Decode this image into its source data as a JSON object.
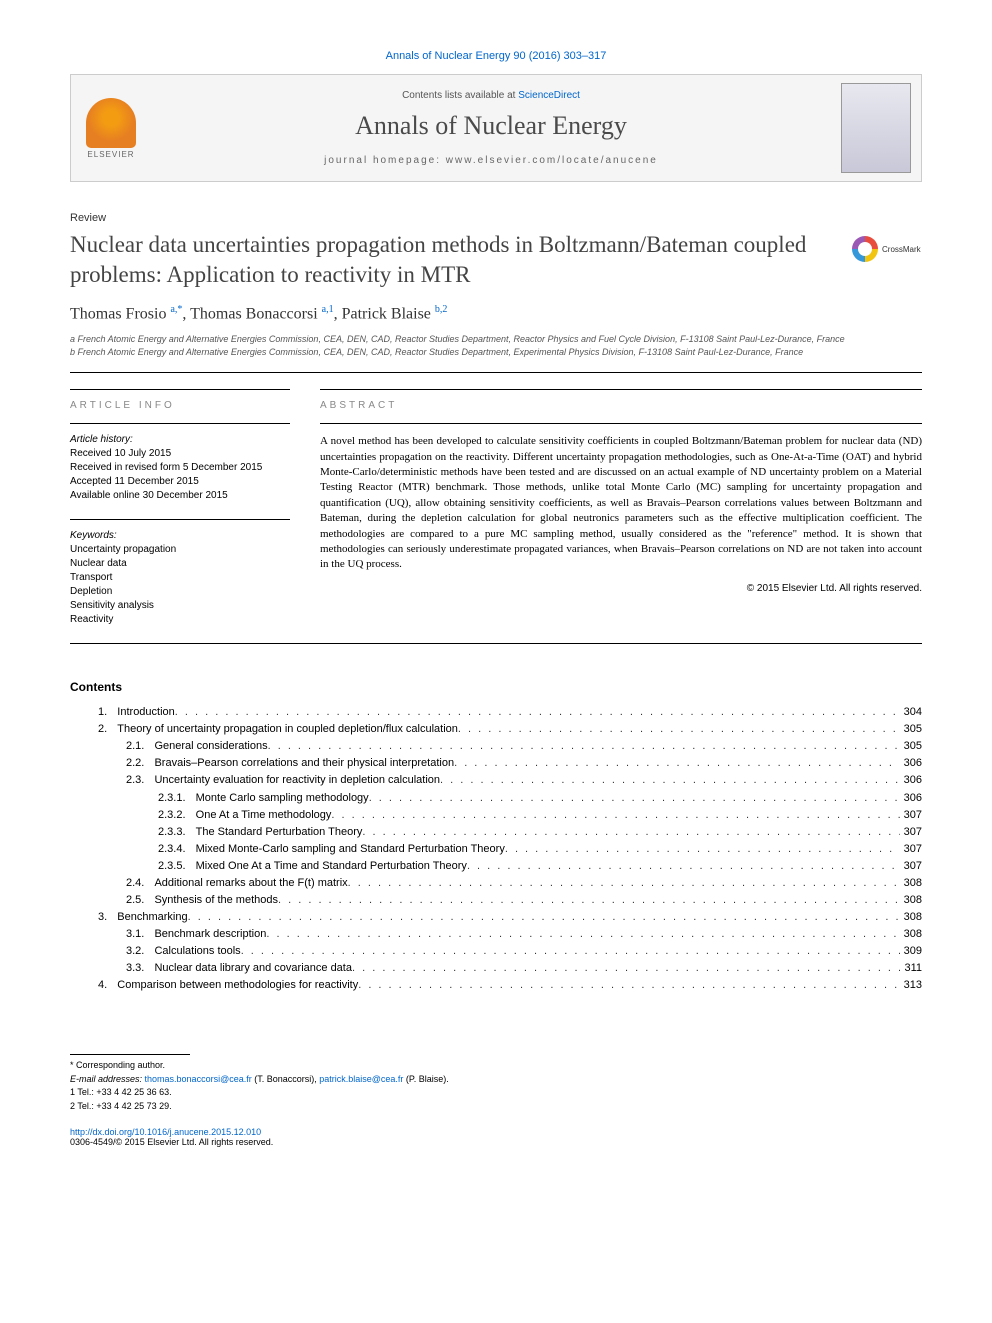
{
  "citation": "Annals of Nuclear Energy 90 (2016) 303–317",
  "header": {
    "publisher": "ELSEVIER",
    "contents_prefix": "Contents lists available at ",
    "contents_link": "ScienceDirect",
    "journal": "Annals of Nuclear Energy",
    "homepage_label": "journal homepage: ",
    "homepage_url": "www.elsevier.com/locate/anucene"
  },
  "article": {
    "type": "Review",
    "title": "Nuclear data uncertainties propagation methods in Boltzmann/Bateman coupled problems: Application to reactivity in MTR",
    "crossmark": "CrossMark",
    "authors_html": "Thomas Frosio <sup>a,*</sup>, Thomas Bonaccorsi <sup>a,1</sup>, Patrick Blaise <sup>b,2</sup>",
    "affiliations": {
      "a": "a French Atomic Energy and Alternative Energies Commission, CEA, DEN, CAD, Reactor Studies Department, Reactor Physics and Fuel Cycle Division, F-13108 Saint Paul-Lez-Durance, France",
      "b": "b French Atomic Energy and Alternative Energies Commission, CEA, DEN, CAD, Reactor Studies Department, Experimental Physics Division, F-13108 Saint Paul-Lez-Durance, France"
    }
  },
  "info": {
    "section_label": "ARTICLE INFO",
    "history_label": "Article history:",
    "history": [
      "Received 10 July 2015",
      "Received in revised form 5 December 2015",
      "Accepted 11 December 2015",
      "Available online 30 December 2015"
    ],
    "keywords_label": "Keywords:",
    "keywords": [
      "Uncertainty propagation",
      "Nuclear data",
      "Transport",
      "Depletion",
      "Sensitivity analysis",
      "Reactivity"
    ]
  },
  "abstract": {
    "section_label": "ABSTRACT",
    "text": "A novel method has been developed to calculate sensitivity coefficients in coupled Boltzmann/Bateman problem for nuclear data (ND) uncertainties propagation on the reactivity. Different uncertainty propagation methodologies, such as One-At-a-Time (OAT) and hybrid Monte-Carlo/deterministic methods have been tested and are discussed on an actual example of ND uncertainty problem on a Material Testing Reactor (MTR) benchmark. Those methods, unlike total Monte Carlo (MC) sampling for uncertainty propagation and quantification (UQ), allow obtaining sensitivity coefficients, as well as Bravais–Pearson correlations values between Boltzmann and Bateman, during the depletion calculation for global neutronics parameters such as the effective multiplication coefficient. The methodologies are compared to a pure MC sampling method, usually considered as the \"reference\" method. It is shown that methodologies can seriously underestimate propagated variances, when Bravais–Pearson correlations on ND are not taken into account in the UQ process.",
    "copyright": "© 2015 Elsevier Ltd. All rights reserved."
  },
  "contents": {
    "heading": "Contents",
    "items": [
      {
        "num": "1.",
        "title": "Introduction",
        "page": "304",
        "indent": 1
      },
      {
        "num": "2.",
        "title": "Theory of uncertainty propagation in coupled depletion/flux calculation",
        "page": "305",
        "indent": 1
      },
      {
        "num": "2.1.",
        "title": "General considerations",
        "page": "305",
        "indent": 2
      },
      {
        "num": "2.2.",
        "title": "Bravais–Pearson correlations and their physical interpretation",
        "page": "306",
        "indent": 2
      },
      {
        "num": "2.3.",
        "title": "Uncertainty evaluation for reactivity in depletion calculation",
        "page": "306",
        "indent": 2
      },
      {
        "num": "2.3.1.",
        "title": "Monte Carlo sampling methodology",
        "page": "306",
        "indent": 3
      },
      {
        "num": "2.3.2.",
        "title": "One At a Time methodology",
        "page": "307",
        "indent": 3
      },
      {
        "num": "2.3.3.",
        "title": "The Standard Perturbation Theory",
        "page": "307",
        "indent": 3
      },
      {
        "num": "2.3.4.",
        "title": "Mixed Monte-Carlo sampling and Standard Perturbation Theory",
        "page": "307",
        "indent": 3
      },
      {
        "num": "2.3.5.",
        "title": "Mixed One At a Time and Standard Perturbation Theory",
        "page": "307",
        "indent": 3
      },
      {
        "num": "2.4.",
        "title": "Additional remarks about the F(t) matrix",
        "page": "308",
        "indent": 2
      },
      {
        "num": "2.5.",
        "title": "Synthesis of the methods",
        "page": "308",
        "indent": 2
      },
      {
        "num": "3.",
        "title": "Benchmarking",
        "page": "308",
        "indent": 1
      },
      {
        "num": "3.1.",
        "title": "Benchmark description",
        "page": "308",
        "indent": 2
      },
      {
        "num": "3.2.",
        "title": "Calculations tools",
        "page": "309",
        "indent": 2
      },
      {
        "num": "3.3.",
        "title": "Nuclear data library and covariance data",
        "page": "311",
        "indent": 2
      },
      {
        "num": "4.",
        "title": "Comparison between methodologies for reactivity",
        "page": "313",
        "indent": 1
      }
    ]
  },
  "footnotes": {
    "corresponding": "* Corresponding author.",
    "email_label": "E-mail addresses: ",
    "emails": [
      {
        "addr": "thomas.bonaccorsi@cea.fr",
        "name": "(T. Bonaccorsi)"
      },
      {
        "addr": "patrick.blaise@cea.fr",
        "name": "(P. Blaise)"
      }
    ],
    "tel1": "1 Tel.: +33 4 42 25 36 63.",
    "tel2": "2 Tel.: +33 4 42 25 73 29."
  },
  "footer": {
    "doi": "http://dx.doi.org/10.1016/j.anucene.2015.12.010",
    "issn_line": "0306-4549/© 2015 Elsevier Ltd. All rights reserved."
  },
  "colors": {
    "link": "#0066cc",
    "text": "#000000",
    "muted": "#888888",
    "rule": "#000000",
    "header_bg": "#f5f5f5"
  },
  "typography": {
    "title_size_pt": 23,
    "journal_size_pt": 26,
    "body_size_pt": 11,
    "small_size_pt": 10,
    "footnote_size_pt": 9
  }
}
